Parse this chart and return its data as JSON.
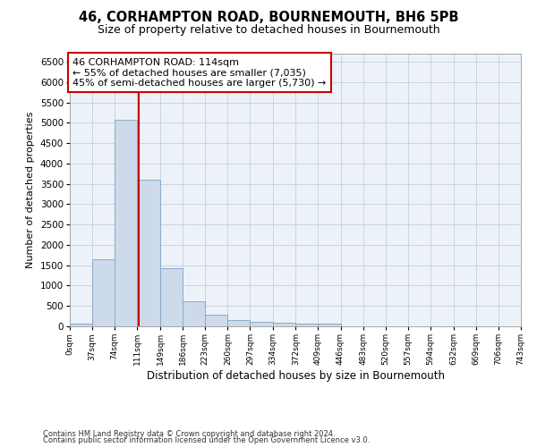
{
  "title": "46, CORHAMPTON ROAD, BOURNEMOUTH, BH6 5PB",
  "subtitle": "Size of property relative to detached houses in Bournemouth",
  "xlabel": "Distribution of detached houses by size in Bournemouth",
  "ylabel": "Number of detached properties",
  "bar_values": [
    75,
    1650,
    5075,
    3600,
    1425,
    625,
    295,
    150,
    110,
    80,
    55,
    55,
    0,
    0,
    0,
    0,
    0,
    0,
    0,
    0
  ],
  "bin_edges": [
    0,
    37,
    74,
    111,
    149,
    186,
    223,
    260,
    297,
    334,
    372,
    409,
    446,
    483,
    520,
    557,
    594,
    632,
    669,
    706,
    743
  ],
  "tick_labels": [
    "0sqm",
    "37sqm",
    "74sqm",
    "111sqm",
    "149sqm",
    "186sqm",
    "223sqm",
    "260sqm",
    "297sqm",
    "334sqm",
    "372sqm",
    "409sqm",
    "446sqm",
    "483sqm",
    "520sqm",
    "557sqm",
    "594sqm",
    "632sqm",
    "669sqm",
    "706sqm",
    "743sqm"
  ],
  "bar_color": "#ccdaeb",
  "bar_edge_color": "#8aaac8",
  "vline_x": 114,
  "vline_color": "#cc0000",
  "annotation_text": "46 CORHAMPTON ROAD: 114sqm\n← 55% of detached houses are smaller (7,035)\n45% of semi-detached houses are larger (5,730) →",
  "annotation_box_color": "#ffffff",
  "annotation_box_edge": "#cc0000",
  "ylim": [
    0,
    6700
  ],
  "yticks": [
    0,
    500,
    1000,
    1500,
    2000,
    2500,
    3000,
    3500,
    4000,
    4500,
    5000,
    5500,
    6000,
    6500
  ],
  "footer1": "Contains HM Land Registry data © Crown copyright and database right 2024.",
  "footer2": "Contains public sector information licensed under the Open Government Licence v3.0.",
  "title_fontsize": 10.5,
  "subtitle_fontsize": 9,
  "grid_color": "#c8d4e4",
  "background_color": "#edf2f8"
}
